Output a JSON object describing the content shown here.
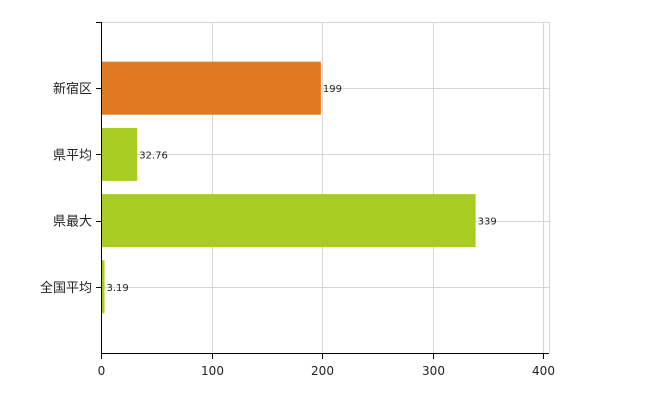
{
  "chart_data": {
    "type": "bar",
    "orientation": "horizontal",
    "categories": [
      "新宿区",
      "県平均",
      "県最大",
      "全国平均"
    ],
    "values": [
      199,
      32.76,
      339,
      3.19
    ],
    "value_labels": [
      "199",
      "32.76",
      "339",
      "3.19"
    ],
    "bar_colors": [
      "#e07a22",
      "#a8cc22",
      "#a8cc22",
      "#a8cc22"
    ],
    "xlim": [
      0,
      400
    ],
    "xticks": [
      0,
      100,
      200,
      300,
      400
    ],
    "xtick_labels": [
      "0",
      "100",
      "200",
      "300",
      "400"
    ],
    "grid": true,
    "legend": "none",
    "title": "",
    "xlabel": "",
    "ylabel": ""
  }
}
